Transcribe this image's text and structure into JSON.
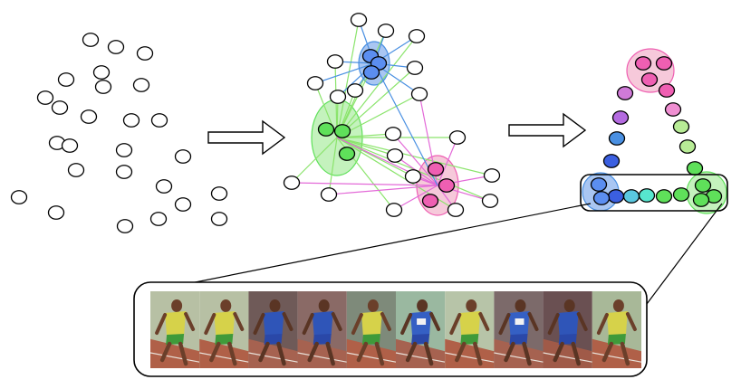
{
  "colors": {
    "node_empty": "#ffffff",
    "node_stroke": "#000000",
    "blue": "#5b8ef0",
    "blue_hull": "#a9c6f2",
    "green": "#5fe05a",
    "green_hull": "#c4f2bd",
    "pink": "#ef5fb2",
    "pink_hull": "#f6c9da",
    "edge_green": "#8be46c",
    "edge_blue": "#4a90e2",
    "edge_magenta": "#e36ad8",
    "chain_purple": "#b46be0",
    "chain_violet": "#d07ad8",
    "chain_lightpink": "#f08fd2",
    "chain_lightgreen": "#b8ec96",
    "chain_cyan": "#57e6cf",
    "chain_teal": "#5ac8e0",
    "chain_navy": "#3b5fe0"
  },
  "stages": [
    {
      "name": "unlabeled-points"
    },
    {
      "name": "graph-with-clusters"
    },
    {
      "name": "chain-of-clusters"
    }
  ],
  "frames": [
    {
      "jersey": "yellow-green",
      "shorts": "green",
      "skin": "#6b3f2a",
      "bg": "#b7c0a4",
      "track": "#b06048"
    },
    {
      "jersey": "yellow-green",
      "shorts": "green",
      "skin": "#6b3f2a",
      "bg": "#b7c0a4",
      "track": "#b06048"
    },
    {
      "jersey": "blue",
      "shorts": "blue",
      "skin": "#5a3524",
      "bg": "#6f5a58",
      "track": "#a66250"
    },
    {
      "jersey": "blue",
      "shorts": "blue",
      "skin": "#5a3524",
      "bg": "#8a6a66",
      "track": "#a66250"
    },
    {
      "jersey": "yellow-green",
      "shorts": "green",
      "skin": "#6b3f2a",
      "bg": "#7e8a7a",
      "track": "#b06048"
    },
    {
      "jersey": "blue-white",
      "shorts": "blue",
      "skin": "#5a3524",
      "bg": "#9ab8a0",
      "track": "#a66250"
    },
    {
      "jersey": "yellow-green",
      "shorts": "green",
      "skin": "#6b3f2a",
      "bg": "#b7c4a8",
      "track": "#b06048"
    },
    {
      "jersey": "blue-white",
      "shorts": "blue",
      "skin": "#5a3524",
      "bg": "#7c6a6a",
      "track": "#a66250"
    },
    {
      "jersey": "blue",
      "shorts": "blue",
      "skin": "#5a3524",
      "bg": "#6a5052",
      "track": "#a05a48"
    },
    {
      "jersey": "yellow-green",
      "shorts": "green",
      "skin": "#6b3f2a",
      "bg": "#a8b898",
      "track": "#b06048"
    }
  ]
}
